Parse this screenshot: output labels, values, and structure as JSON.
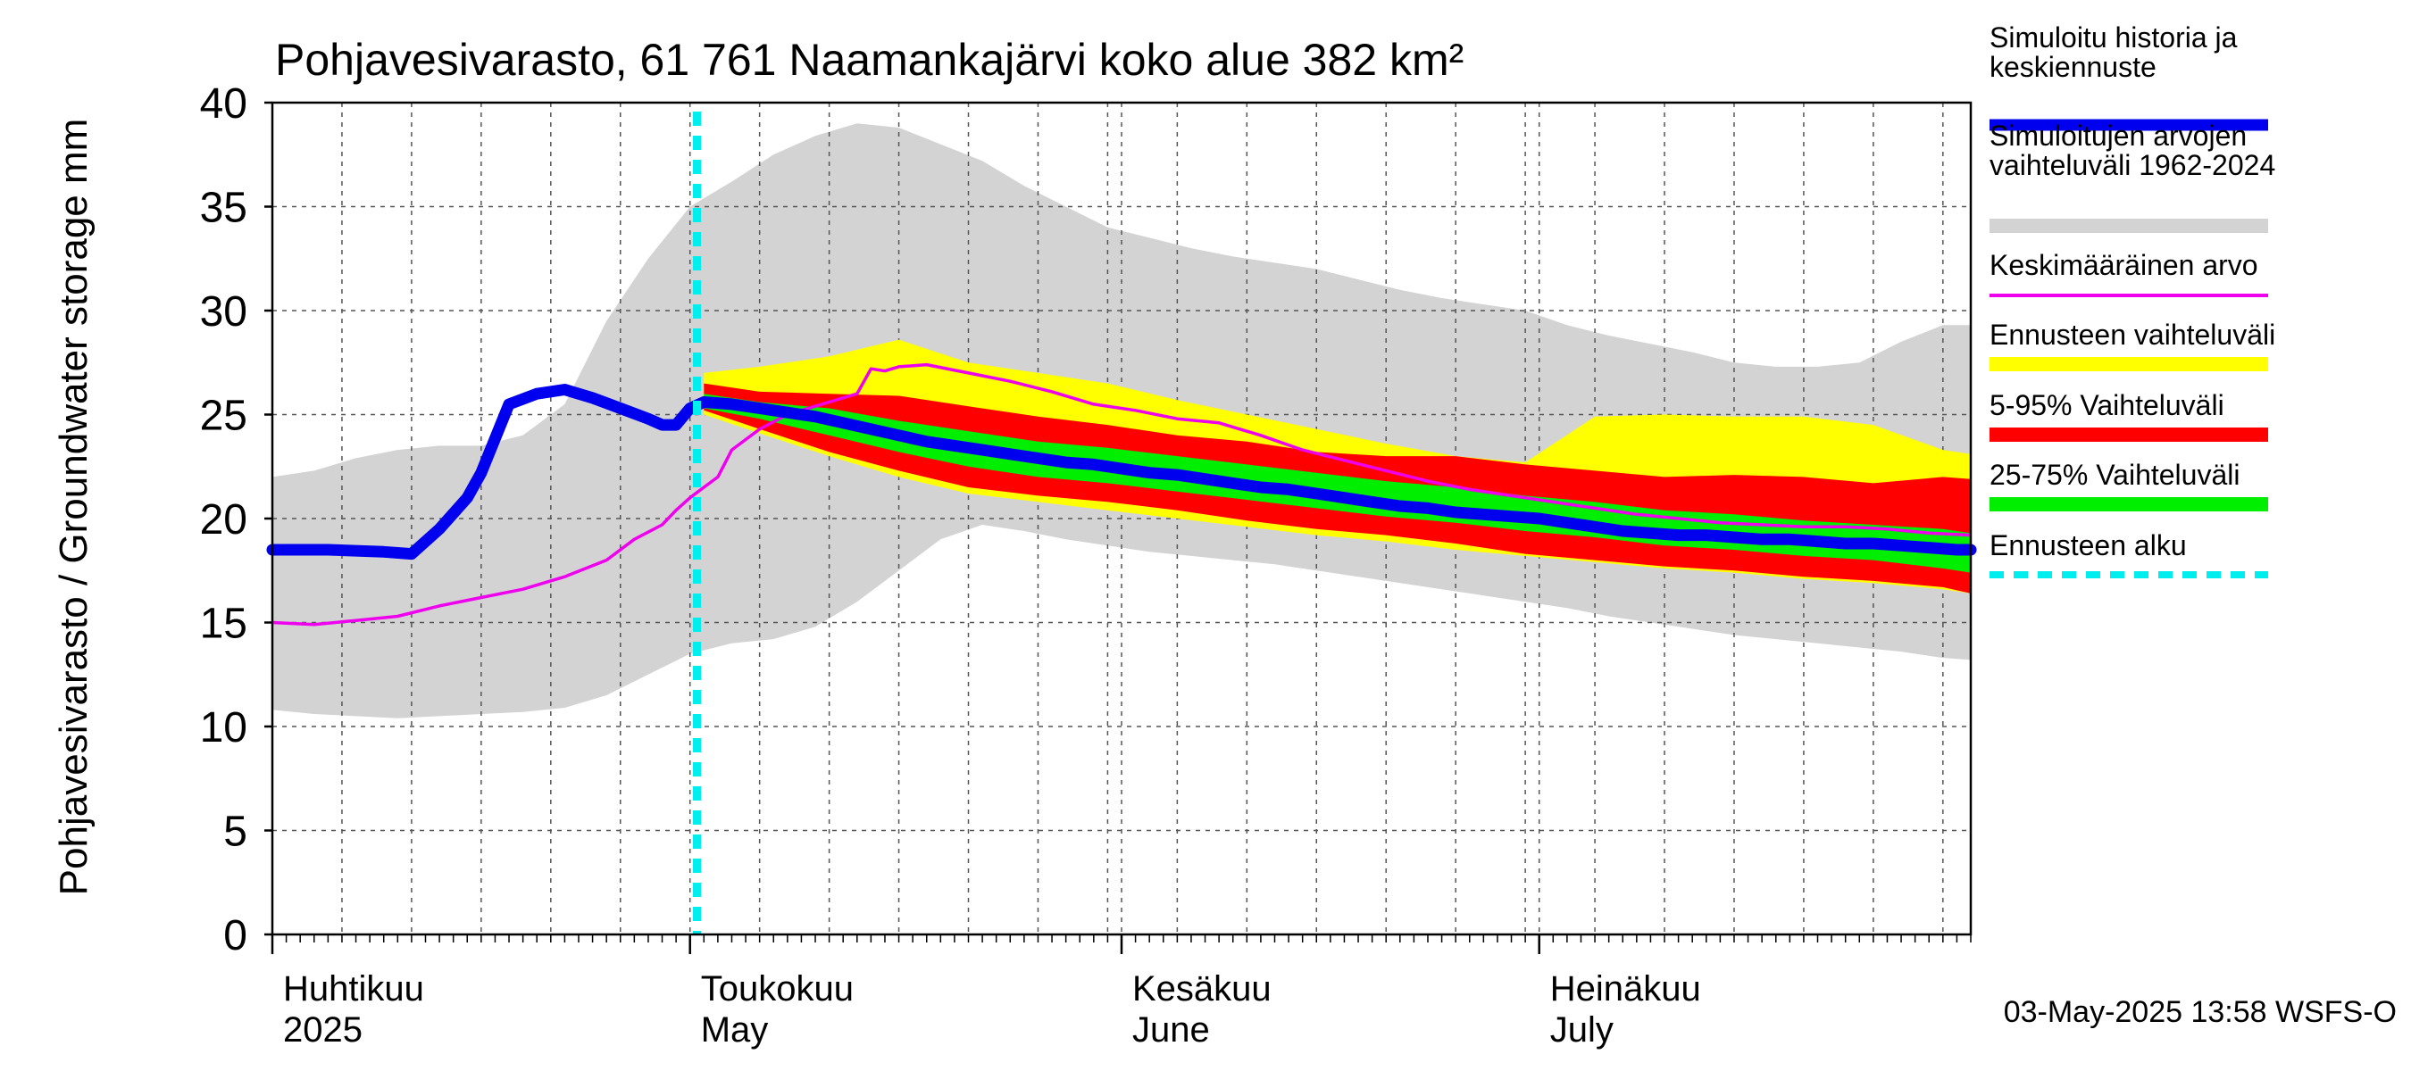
{
  "chart_data": {
    "type": "area",
    "title": "Pohjavesivarasto, 61 761 Naamankajärvi koko alue 382 km²",
    "ylabel": "Pohjavesivarasto / Groundwater storage   mm",
    "ylim": [
      0,
      40
    ],
    "yticks": [
      0,
      5,
      10,
      15,
      20,
      25,
      30,
      35,
      40
    ],
    "xlim_day": [
      0,
      122
    ],
    "x_unit": "day since 2025-04-01",
    "month_starts": [
      0,
      30,
      61,
      91
    ],
    "month_labels": [
      {
        "fi": "Huhtikuu",
        "en": "2025",
        "day": 0
      },
      {
        "fi": "Toukokuu",
        "en": "May",
        "day": 30
      },
      {
        "fi": "Kesäkuu",
        "en": "June",
        "day": 61
      },
      {
        "fi": "Heinäkuu",
        "en": "July",
        "day": 91
      }
    ],
    "forecast_start_day": 30.5,
    "timestamp": "03-May-2025 13:58 WSFS-O",
    "legend": [
      {
        "key": "sim",
        "label_lines": [
          "Simuloitu historia ja",
          "keskiennuste"
        ],
        "color": "#0000ee",
        "style": "thick"
      },
      {
        "key": "range",
        "label_lines": [
          "Simuloitujen arvojen",
          "vaihteluväli 1962-2024"
        ],
        "color": "#d3d3d3",
        "style": "band"
      },
      {
        "key": "mean",
        "label_lines": [
          "Keskimääräinen arvo"
        ],
        "color": "#ee00ee",
        "style": "line"
      },
      {
        "key": "fc",
        "label_lines": [
          "Ennusteen vaihteluväli"
        ],
        "color": "#ffff00",
        "style": "band"
      },
      {
        "key": "p5_95",
        "label_lines": [
          "5-95% Vaihteluväli"
        ],
        "color": "#ff0000",
        "style": "band"
      },
      {
        "key": "p25_75",
        "label_lines": [
          "25-75% Vaihteluväli"
        ],
        "color": "#00ee00",
        "style": "band"
      },
      {
        "key": "start",
        "label_lines": [
          "Ennusteen alku"
        ],
        "color": "#00eeee",
        "style": "dashed"
      }
    ],
    "series": {
      "historical_range": {
        "x": [
          0,
          3,
          6,
          9,
          12,
          15,
          18,
          21,
          24,
          27,
          30,
          33,
          36,
          39,
          42,
          45,
          48,
          51,
          54,
          57,
          60,
          63,
          66,
          69,
          72,
          75,
          78,
          81,
          84,
          87,
          90,
          93,
          96,
          99,
          102,
          105,
          108,
          111,
          114,
          117,
          120,
          122
        ],
        "lower": [
          10.8,
          10.6,
          10.5,
          10.4,
          10.5,
          10.6,
          10.7,
          10.9,
          11.5,
          12.5,
          13.5,
          14.0,
          14.2,
          14.8,
          16.0,
          17.5,
          19.0,
          19.7,
          19.4,
          19.0,
          18.7,
          18.4,
          18.2,
          18.0,
          17.8,
          17.5,
          17.2,
          16.9,
          16.6,
          16.3,
          16.0,
          15.7,
          15.3,
          15.0,
          14.7,
          14.4,
          14.2,
          14.0,
          13.8,
          13.6,
          13.3,
          13.2
        ],
        "upper": [
          22.0,
          22.3,
          22.9,
          23.3,
          23.5,
          23.5,
          24.0,
          25.5,
          29.5,
          32.5,
          35.0,
          36.2,
          37.5,
          38.4,
          39.0,
          38.8,
          38.0,
          37.2,
          36.0,
          35.0,
          34.0,
          33.5,
          33.0,
          32.6,
          32.3,
          32.0,
          31.5,
          31.0,
          30.6,
          30.3,
          30.0,
          29.3,
          28.8,
          28.4,
          28.0,
          27.5,
          27.3,
          27.3,
          27.5,
          28.5,
          29.3,
          29.3
        ]
      },
      "forecast_range": {
        "x": [
          31,
          35,
          40,
          45,
          50,
          55,
          60,
          65,
          70,
          75,
          80,
          85,
          90,
          95,
          100,
          105,
          110,
          115,
          120,
          122
        ],
        "lower": [
          25.0,
          24.1,
          23.0,
          22.0,
          21.2,
          20.8,
          20.4,
          20.0,
          19.6,
          19.2,
          18.9,
          18.5,
          18.2,
          17.9,
          17.6,
          17.4,
          17.1,
          16.9,
          16.6,
          16.4
        ],
        "upper": [
          27.0,
          27.3,
          27.8,
          28.6,
          27.5,
          27.0,
          26.5,
          25.7,
          25.0,
          24.3,
          23.6,
          23.0,
          22.7,
          24.9,
          25.0,
          24.9,
          24.9,
          24.5,
          23.3,
          23.1
        ]
      },
      "p5_95": {
        "x": [
          31,
          35,
          40,
          45,
          50,
          55,
          60,
          65,
          70,
          75,
          80,
          85,
          90,
          95,
          100,
          105,
          110,
          115,
          120,
          122
        ],
        "lower": [
          25.2,
          24.3,
          23.2,
          22.3,
          21.5,
          21.1,
          20.8,
          20.4,
          19.9,
          19.5,
          19.2,
          18.8,
          18.3,
          18.0,
          17.7,
          17.5,
          17.2,
          17.0,
          16.7,
          16.4
        ],
        "upper": [
          26.5,
          26.1,
          26.0,
          25.9,
          25.4,
          24.9,
          24.5,
          24.0,
          23.7,
          23.2,
          23.0,
          23.0,
          22.6,
          22.3,
          22.0,
          22.1,
          22.0,
          21.7,
          22.0,
          21.9
        ]
      },
      "p25_75": {
        "x": [
          31,
          35,
          40,
          45,
          50,
          55,
          60,
          65,
          70,
          75,
          80,
          85,
          90,
          95,
          100,
          105,
          110,
          115,
          120,
          122
        ],
        "lower": [
          25.3,
          24.8,
          24.0,
          23.2,
          22.5,
          22.0,
          21.7,
          21.3,
          20.9,
          20.5,
          20.1,
          19.8,
          19.4,
          19.1,
          18.7,
          18.5,
          18.2,
          18.0,
          17.6,
          17.4
        ],
        "upper": [
          26.0,
          25.6,
          25.3,
          24.7,
          24.2,
          23.7,
          23.4,
          23.0,
          22.6,
          22.2,
          21.8,
          21.5,
          21.1,
          20.8,
          20.4,
          20.2,
          19.9,
          19.7,
          19.5,
          19.3
        ]
      },
      "simulated": {
        "x": [
          0,
          4,
          8,
          10,
          12,
          14,
          15,
          17,
          19,
          21,
          23,
          25,
          27,
          28,
          29,
          30,
          31,
          33,
          35,
          37,
          39,
          41,
          43,
          45,
          47,
          49,
          51,
          53,
          55,
          57,
          59,
          61,
          63,
          65,
          67,
          69,
          71,
          73,
          75,
          77,
          79,
          81,
          83,
          85,
          87,
          89,
          91,
          93,
          95,
          97,
          99,
          101,
          103,
          105,
          107,
          109,
          111,
          113,
          115,
          117,
          119,
          121,
          122
        ],
        "y": [
          18.5,
          18.5,
          18.4,
          18.3,
          19.5,
          21.0,
          22.2,
          25.5,
          26.0,
          26.2,
          25.8,
          25.3,
          24.8,
          24.5,
          24.5,
          25.3,
          25.6,
          25.5,
          25.3,
          25.1,
          24.9,
          24.6,
          24.3,
          24.0,
          23.7,
          23.5,
          23.3,
          23.1,
          22.9,
          22.7,
          22.6,
          22.4,
          22.2,
          22.1,
          21.9,
          21.7,
          21.5,
          21.4,
          21.2,
          21.0,
          20.8,
          20.6,
          20.5,
          20.3,
          20.2,
          20.1,
          20.0,
          19.8,
          19.6,
          19.4,
          19.3,
          19.2,
          19.2,
          19.1,
          19.0,
          19.0,
          18.9,
          18.8,
          18.8,
          18.7,
          18.6,
          18.5,
          18.5
        ]
      },
      "mean": {
        "x": [
          0,
          3,
          6,
          9,
          12,
          15,
          18,
          21,
          24,
          26,
          28,
          29,
          30,
          31,
          32,
          33,
          35,
          37,
          40,
          42,
          43,
          44,
          45,
          47,
          50,
          53,
          56,
          59,
          62,
          65,
          68,
          71,
          74,
          77,
          80,
          83,
          86,
          89,
          92,
          95,
          98,
          101,
          104,
          107,
          110,
          113,
          116,
          119,
          122
        ],
        "y": [
          15.0,
          14.9,
          15.1,
          15.3,
          15.8,
          16.2,
          16.6,
          17.2,
          18.0,
          19.0,
          19.7,
          20.4,
          21.0,
          21.5,
          22.0,
          23.3,
          24.3,
          25.0,
          25.6,
          26.0,
          27.2,
          27.1,
          27.3,
          27.4,
          27.0,
          26.6,
          26.1,
          25.5,
          25.2,
          24.8,
          24.6,
          24.0,
          23.3,
          22.8,
          22.3,
          21.8,
          21.4,
          21.1,
          20.8,
          20.5,
          20.2,
          20.0,
          19.8,
          19.7,
          19.6,
          19.6,
          19.5,
          19.3,
          19.2
        ]
      }
    }
  }
}
